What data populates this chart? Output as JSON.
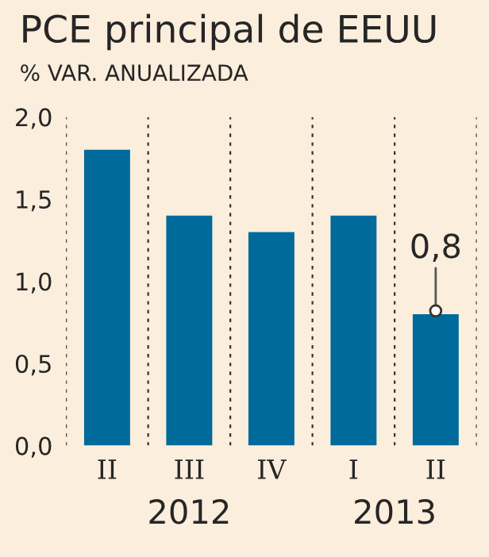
{
  "chart_data": {
    "type": "bar",
    "title": "PCE principal de EEUU",
    "subtitle": "% VAR. ANUALIZADA",
    "categories": [
      "II",
      "III",
      "IV",
      "I",
      "II"
    ],
    "values": [
      1.8,
      1.4,
      1.3,
      1.4,
      0.8
    ],
    "color": "#006b9b",
    "ylim": [
      0,
      2
    ],
    "yticks": [
      {
        "value": 0,
        "label": "0,0"
      },
      {
        "value": 0.5,
        "label": "0,5"
      },
      {
        "value": 1,
        "label": "1,0"
      },
      {
        "value": 1.5,
        "label": "1,5"
      },
      {
        "value": 2,
        "label": "2,0"
      }
    ],
    "grid": "x",
    "value_labels": [
      null,
      null,
      null,
      null,
      "0,8"
    ],
    "annotations": [
      "2012",
      "2013"
    ]
  }
}
